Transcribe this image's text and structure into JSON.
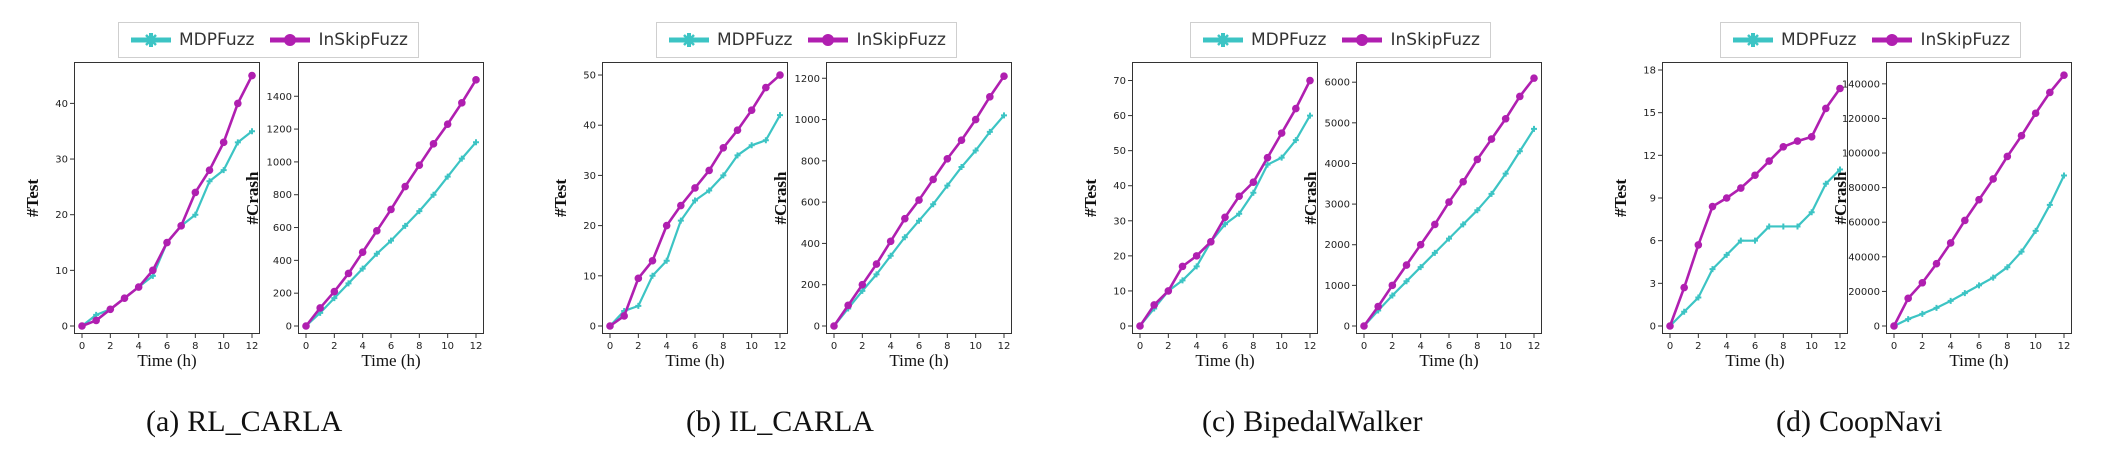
{
  "legend": {
    "mdp_label": "MDPFuzz",
    "inskip_label": "InSkipFuzz"
  },
  "colors": {
    "mdp": "#3cc4c4",
    "inskip": "#b01fb0"
  },
  "chart_data": [
    {
      "id": "a",
      "caption_letter": "(a)",
      "caption_name": "RL_CARLA",
      "type": "line",
      "xlabel": "Time (h)",
      "x": [
        0,
        1,
        2,
        3,
        4,
        5,
        6,
        7,
        8,
        9,
        10,
        11,
        12
      ],
      "xticks": [
        0,
        2,
        4,
        6,
        8,
        10,
        12
      ],
      "xlim": [
        0,
        12
      ],
      "plots": [
        {
          "ylabel": "#Test",
          "ylim": [
            0,
            46
          ],
          "yticks": [
            0,
            10,
            20,
            30,
            40
          ],
          "series": [
            {
              "name": "MDPFuzz",
              "values": [
                0,
                2,
                3,
                5,
                7,
                9,
                15,
                18,
                20,
                26,
                28,
                33,
                35
              ]
            },
            {
              "name": "InSkipFuzz",
              "values": [
                0,
                1,
                3,
                5,
                7,
                10,
                15,
                18,
                24,
                28,
                33,
                40,
                45
              ]
            }
          ]
        },
        {
          "ylabel": "#Crash",
          "ylim": [
            0,
            1560
          ],
          "yticks": [
            0,
            200,
            400,
            600,
            800,
            1000,
            1200,
            1400
          ],
          "series": [
            {
              "name": "MDPFuzz",
              "values": [
                0,
                80,
                170,
                260,
                350,
                440,
                520,
                610,
                700,
                800,
                910,
                1020,
                1120
              ]
            },
            {
              "name": "InSkipFuzz",
              "values": [
                0,
                110,
                210,
                320,
                450,
                580,
                710,
                850,
                980,
                1110,
                1230,
                1360,
                1500
              ]
            }
          ]
        }
      ]
    },
    {
      "id": "b",
      "caption_letter": "(b)",
      "caption_name": "IL_CARLA",
      "type": "line",
      "xlabel": "Time (h)",
      "x": [
        0,
        1,
        2,
        3,
        4,
        5,
        6,
        7,
        8,
        9,
        10,
        11,
        12
      ],
      "xticks": [
        0,
        2,
        4,
        6,
        8,
        10,
        12
      ],
      "xlim": [
        0,
        12
      ],
      "plots": [
        {
          "ylabel": "#Test",
          "ylim": [
            0,
            51
          ],
          "yticks": [
            0,
            10,
            20,
            30,
            40,
            50
          ],
          "series": [
            {
              "name": "MDPFuzz",
              "values": [
                0,
                3,
                4,
                10,
                13,
                21,
                25,
                27,
                30,
                34,
                36,
                37,
                42
              ]
            },
            {
              "name": "InSkipFuzz",
              "values": [
                0,
                2,
                9.5,
                13,
                20,
                24,
                27.5,
                31,
                35.5,
                39,
                43,
                47.5,
                50
              ]
            }
          ]
        },
        {
          "ylabel": "#Crash",
          "ylim": [
            0,
            1240
          ],
          "yticks": [
            0,
            200,
            400,
            600,
            800,
            1000,
            1200
          ],
          "series": [
            {
              "name": "MDPFuzz",
              "values": [
                0,
                85,
                170,
                250,
                340,
                430,
                510,
                590,
                680,
                770,
                850,
                940,
                1020
              ]
            },
            {
              "name": "InSkipFuzz",
              "values": [
                0,
                100,
                200,
                300,
                410,
                520,
                610,
                710,
                810,
                900,
                1000,
                1110,
                1210
              ]
            }
          ]
        }
      ]
    },
    {
      "id": "c",
      "caption_letter": "(c)",
      "caption_name": "BipedalWalker",
      "type": "line",
      "xlabel": "Time (h)",
      "x": [
        0,
        1,
        2,
        3,
        4,
        5,
        6,
        7,
        8,
        9,
        10,
        11,
        12
      ],
      "xticks": [
        0,
        2,
        4,
        6,
        8,
        10,
        12
      ],
      "xlim": [
        0,
        12
      ],
      "plots": [
        {
          "ylabel": "#Test",
          "ylim": [
            0,
            73
          ],
          "yticks": [
            0,
            10,
            20,
            30,
            40,
            50,
            60,
            70
          ],
          "series": [
            {
              "name": "MDPFuzz",
              "values": [
                0,
                5,
                10,
                13,
                17,
                24,
                29,
                32,
                38,
                46,
                48,
                53,
                60
              ]
            },
            {
              "name": "InSkipFuzz",
              "values": [
                0,
                6,
                10,
                17,
                20,
                24,
                31,
                37,
                41,
                48,
                55,
                62,
                70
              ]
            }
          ]
        },
        {
          "ylabel": "#Crash",
          "ylim": [
            0,
            6300
          ],
          "yticks": [
            0,
            1000,
            2000,
            3000,
            4000,
            5000,
            6000
          ],
          "series": [
            {
              "name": "MDPFuzz",
              "values": [
                0,
                380,
                750,
                1100,
                1450,
                1800,
                2150,
                2500,
                2850,
                3250,
                3750,
                4300,
                4850
              ]
            },
            {
              "name": "InSkipFuzz",
              "values": [
                0,
                480,
                1000,
                1500,
                2000,
                2500,
                3050,
                3550,
                4100,
                4600,
                5100,
                5650,
                6100
              ]
            }
          ]
        }
      ]
    },
    {
      "id": "d",
      "caption_letter": "(d)",
      "caption_name": "CoopNavi",
      "type": "line",
      "xlabel": "Time (h)",
      "x": [
        0,
        1,
        2,
        3,
        4,
        5,
        6,
        7,
        8,
        9,
        10,
        11,
        12
      ],
      "xticks": [
        0,
        2,
        4,
        6,
        8,
        10,
        12
      ],
      "xlim": [
        0,
        12
      ],
      "plots": [
        {
          "ylabel": "#Test",
          "ylim": [
            0,
            18
          ],
          "yticks": [
            0,
            3,
            6,
            9,
            12,
            15,
            18
          ],
          "series": [
            {
              "name": "MDPFuzz",
              "values": [
                0,
                1,
                2,
                4,
                5,
                6,
                6,
                7,
                7,
                7,
                8,
                10,
                11
              ]
            },
            {
              "name": "InSkipFuzz",
              "values": [
                0,
                2.7,
                5.7,
                8.4,
                9,
                9.7,
                10.6,
                11.6,
                12.6,
                13,
                13.3,
                15.3,
                16.7
              ]
            }
          ]
        },
        {
          "ylabel": "#Crash",
          "ylim": [
            0,
            148000
          ],
          "yticks": [
            0,
            20000,
            40000,
            60000,
            80000,
            100000,
            120000,
            140000
          ],
          "series": [
            {
              "name": "MDPFuzz",
              "values": [
                0,
                4000,
                7000,
                10500,
                14500,
                19000,
                23500,
                28000,
                34000,
                43000,
                55000,
                70000,
                87000
              ]
            },
            {
              "name": "InSkipFuzz",
              "values": [
                0,
                16000,
                25000,
                36000,
                48000,
                61000,
                73000,
                85000,
                98000,
                110000,
                123000,
                135000,
                145000
              ]
            }
          ]
        }
      ]
    }
  ]
}
